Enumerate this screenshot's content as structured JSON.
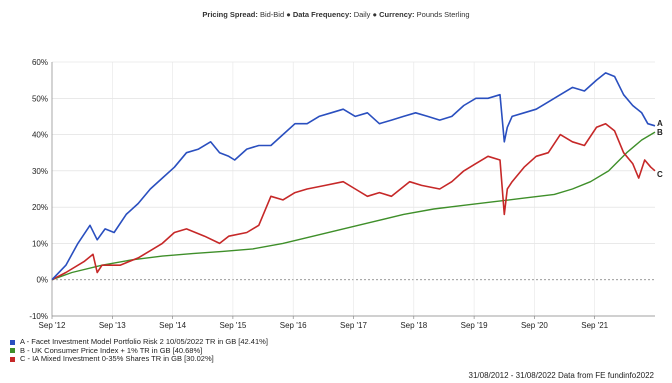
{
  "header": {
    "spread_label": "Pricing Spread:",
    "spread_value": "Bid-Bid",
    "freq_label": "Data Frequency:",
    "freq_value": "Daily",
    "currency_label": "Currency:",
    "currency_value": "Pounds Sterling",
    "separator": "●"
  },
  "chart_data": {
    "type": "line",
    "x_ticks": [
      "Sep '12",
      "Sep '13",
      "Sep '14",
      "Sep '15",
      "Sep '16",
      "Sep '17",
      "Sep '18",
      "Sep '19",
      "Sep '20",
      "Sep '21"
    ],
    "y_ticks": [
      "-10%",
      "0%",
      "10%",
      "20%",
      "30%",
      "40%",
      "50%",
      "60%"
    ],
    "ylim": [
      -10,
      60
    ],
    "xlim": [
      2012.67,
      2022.67
    ],
    "grid": true,
    "legend_position": "bottom-left",
    "series": [
      {
        "name": "A - Facet Investment Model Portfolio Risk 2 10/05/2022 TR in GB [42.41%]",
        "end_label": "A",
        "color": "#2a4fbf",
        "x": [
          2012.67,
          2012.9,
          2013.1,
          2013.3,
          2013.42,
          2013.55,
          2013.7,
          2013.9,
          2014.1,
          2014.3,
          2014.5,
          2014.7,
          2014.9,
          2015.1,
          2015.3,
          2015.45,
          2015.6,
          2015.7,
          2015.9,
          2016.1,
          2016.3,
          2016.5,
          2016.7,
          2016.9,
          2017.1,
          2017.3,
          2017.5,
          2017.7,
          2017.9,
          2018.1,
          2018.3,
          2018.5,
          2018.7,
          2018.9,
          2019.1,
          2019.3,
          2019.5,
          2019.7,
          2019.9,
          2020.1,
          2020.17,
          2020.22,
          2020.3,
          2020.5,
          2020.7,
          2020.9,
          2021.1,
          2021.3,
          2021.5,
          2021.7,
          2021.85,
          2022.0,
          2022.15,
          2022.3,
          2022.45,
          2022.55,
          2022.67
        ],
        "values": [
          0,
          4,
          10,
          15,
          11,
          14,
          13,
          18,
          21,
          25,
          28,
          31,
          35,
          36,
          38,
          35,
          34,
          33,
          36,
          37,
          37,
          40,
          43,
          43,
          45,
          46,
          47,
          45,
          46,
          43,
          44,
          45,
          46,
          45,
          44,
          45,
          48,
          50,
          50,
          51,
          38,
          42,
          45,
          46,
          47,
          49,
          51,
          53,
          52,
          55,
          57,
          56,
          51,
          48,
          46,
          43,
          42.41
        ]
      },
      {
        "name": "B - UK Consumer Price Index + 1% TR in GB [40.68%]",
        "end_label": "B",
        "color": "#3f8f2a",
        "x": [
          2012.67,
          2013.0,
          2013.5,
          2014.0,
          2014.5,
          2015.0,
          2015.5,
          2016.0,
          2016.5,
          2017.0,
          2017.5,
          2018.0,
          2018.5,
          2019.0,
          2019.5,
          2020.0,
          2020.5,
          2021.0,
          2021.3,
          2021.6,
          2021.9,
          2022.2,
          2022.45,
          2022.67
        ],
        "values": [
          0,
          2,
          4,
          5.5,
          6.5,
          7.2,
          7.8,
          8.5,
          10,
          12,
          14,
          16,
          18,
          19.5,
          20.5,
          21.5,
          22.5,
          23.5,
          25,
          27,
          30,
          35,
          38.5,
          40.68
        ]
      },
      {
        "name": "C - IA Mixed Investment 0-35% Shares TR in GB [30.02%]",
        "end_label": "C",
        "color": "#c62828",
        "x": [
          2012.67,
          2012.9,
          2013.2,
          2013.35,
          2013.42,
          2013.5,
          2013.8,
          2014.1,
          2014.3,
          2014.5,
          2014.7,
          2014.9,
          2015.2,
          2015.45,
          2015.6,
          2015.9,
          2016.1,
          2016.3,
          2016.5,
          2016.7,
          2016.9,
          2017.2,
          2017.5,
          2017.7,
          2017.9,
          2018.1,
          2018.3,
          2018.6,
          2018.8,
          2019.1,
          2019.3,
          2019.5,
          2019.7,
          2019.9,
          2020.1,
          2020.17,
          2020.22,
          2020.3,
          2020.5,
          2020.7,
          2020.9,
          2021.1,
          2021.3,
          2021.5,
          2021.7,
          2021.85,
          2022.0,
          2022.15,
          2022.3,
          2022.4,
          2022.5,
          2022.6,
          2022.67
        ],
        "values": [
          0,
          2,
          5,
          7,
          2,
          4,
          4,
          6,
          8,
          10,
          13,
          14,
          12,
          10,
          12,
          13,
          15,
          23,
          22,
          24,
          25,
          26,
          27,
          25,
          23,
          24,
          23,
          27,
          26,
          25,
          27,
          30,
          32,
          34,
          33,
          18,
          25,
          27,
          31,
          34,
          35,
          40,
          38,
          37,
          42,
          43,
          41,
          35,
          32,
          28,
          33,
          31,
          30.02
        ]
      }
    ]
  },
  "footer": {
    "text": "31/08/2012 - 31/08/2022 Data from FE fundinfo2022"
  }
}
